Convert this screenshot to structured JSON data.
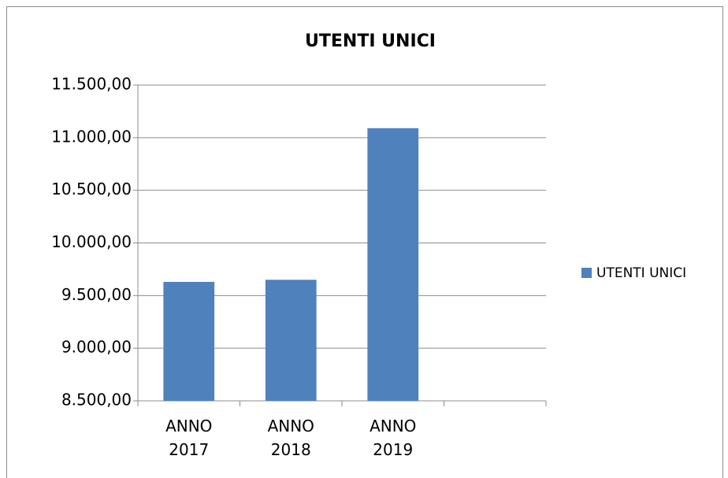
{
  "chart_data": {
    "type": "bar",
    "title": "UTENTI UNICI",
    "categories": [
      "ANNO 2017",
      "ANNO 2018",
      "ANNO 2019",
      null
    ],
    "series": [
      {
        "name": "UTENTI UNICI",
        "color": "#4f81bd",
        "values": [
          9630,
          9650,
          11090,
          null
        ]
      }
    ],
    "ylim": [
      8500,
      11500
    ],
    "yticks": [
      {
        "value": 8500,
        "label": "8.500,00"
      },
      {
        "value": 9000,
        "label": "9.000,00"
      },
      {
        "value": 9500,
        "label": "9.500,00"
      },
      {
        "value": 10000,
        "label": "10.000,00"
      },
      {
        "value": 10500,
        "label": "10.500,00"
      },
      {
        "value": 11000,
        "label": "11.000,00"
      },
      {
        "value": 11500,
        "label": "11.500,00"
      }
    ],
    "grid": true,
    "legend": "right"
  }
}
